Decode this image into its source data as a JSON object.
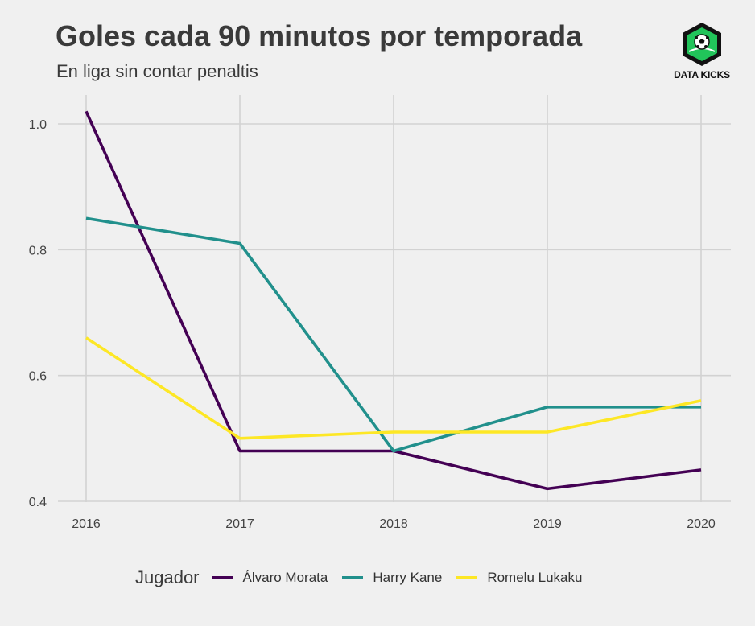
{
  "chart_data": {
    "type": "line",
    "title": "Goles cada 90 minutos por temporada",
    "subtitle": "En liga sin contar penaltis",
    "x": [
      2016,
      2017,
      2018,
      2019,
      2020
    ],
    "x_tick_labels": [
      "2016",
      "2017",
      "2018",
      "2019",
      "2020"
    ],
    "y_ticks": [
      0.4,
      0.6,
      0.8,
      1.0
    ],
    "y_tick_labels": [
      "0.4",
      "0.6",
      "0.8",
      "1.0"
    ],
    "ylim": [
      0.4,
      1.03
    ],
    "grid": true,
    "legend": {
      "title": "Jugador",
      "placement": "bottom"
    },
    "series": [
      {
        "name": "Álvaro Morata",
        "color": "#440154",
        "values": [
          1.02,
          0.48,
          0.48,
          0.42,
          0.45
        ]
      },
      {
        "name": "Harry Kane",
        "color": "#21908c",
        "values": [
          0.85,
          0.81,
          0.48,
          0.55,
          0.55
        ]
      },
      {
        "name": "Romelu Lukaku",
        "color": "#fde725",
        "values": [
          0.66,
          0.5,
          0.51,
          0.51,
          0.56
        ]
      }
    ]
  },
  "logo": {
    "text": "DATA KICKS",
    "color": "#21c45a"
  }
}
